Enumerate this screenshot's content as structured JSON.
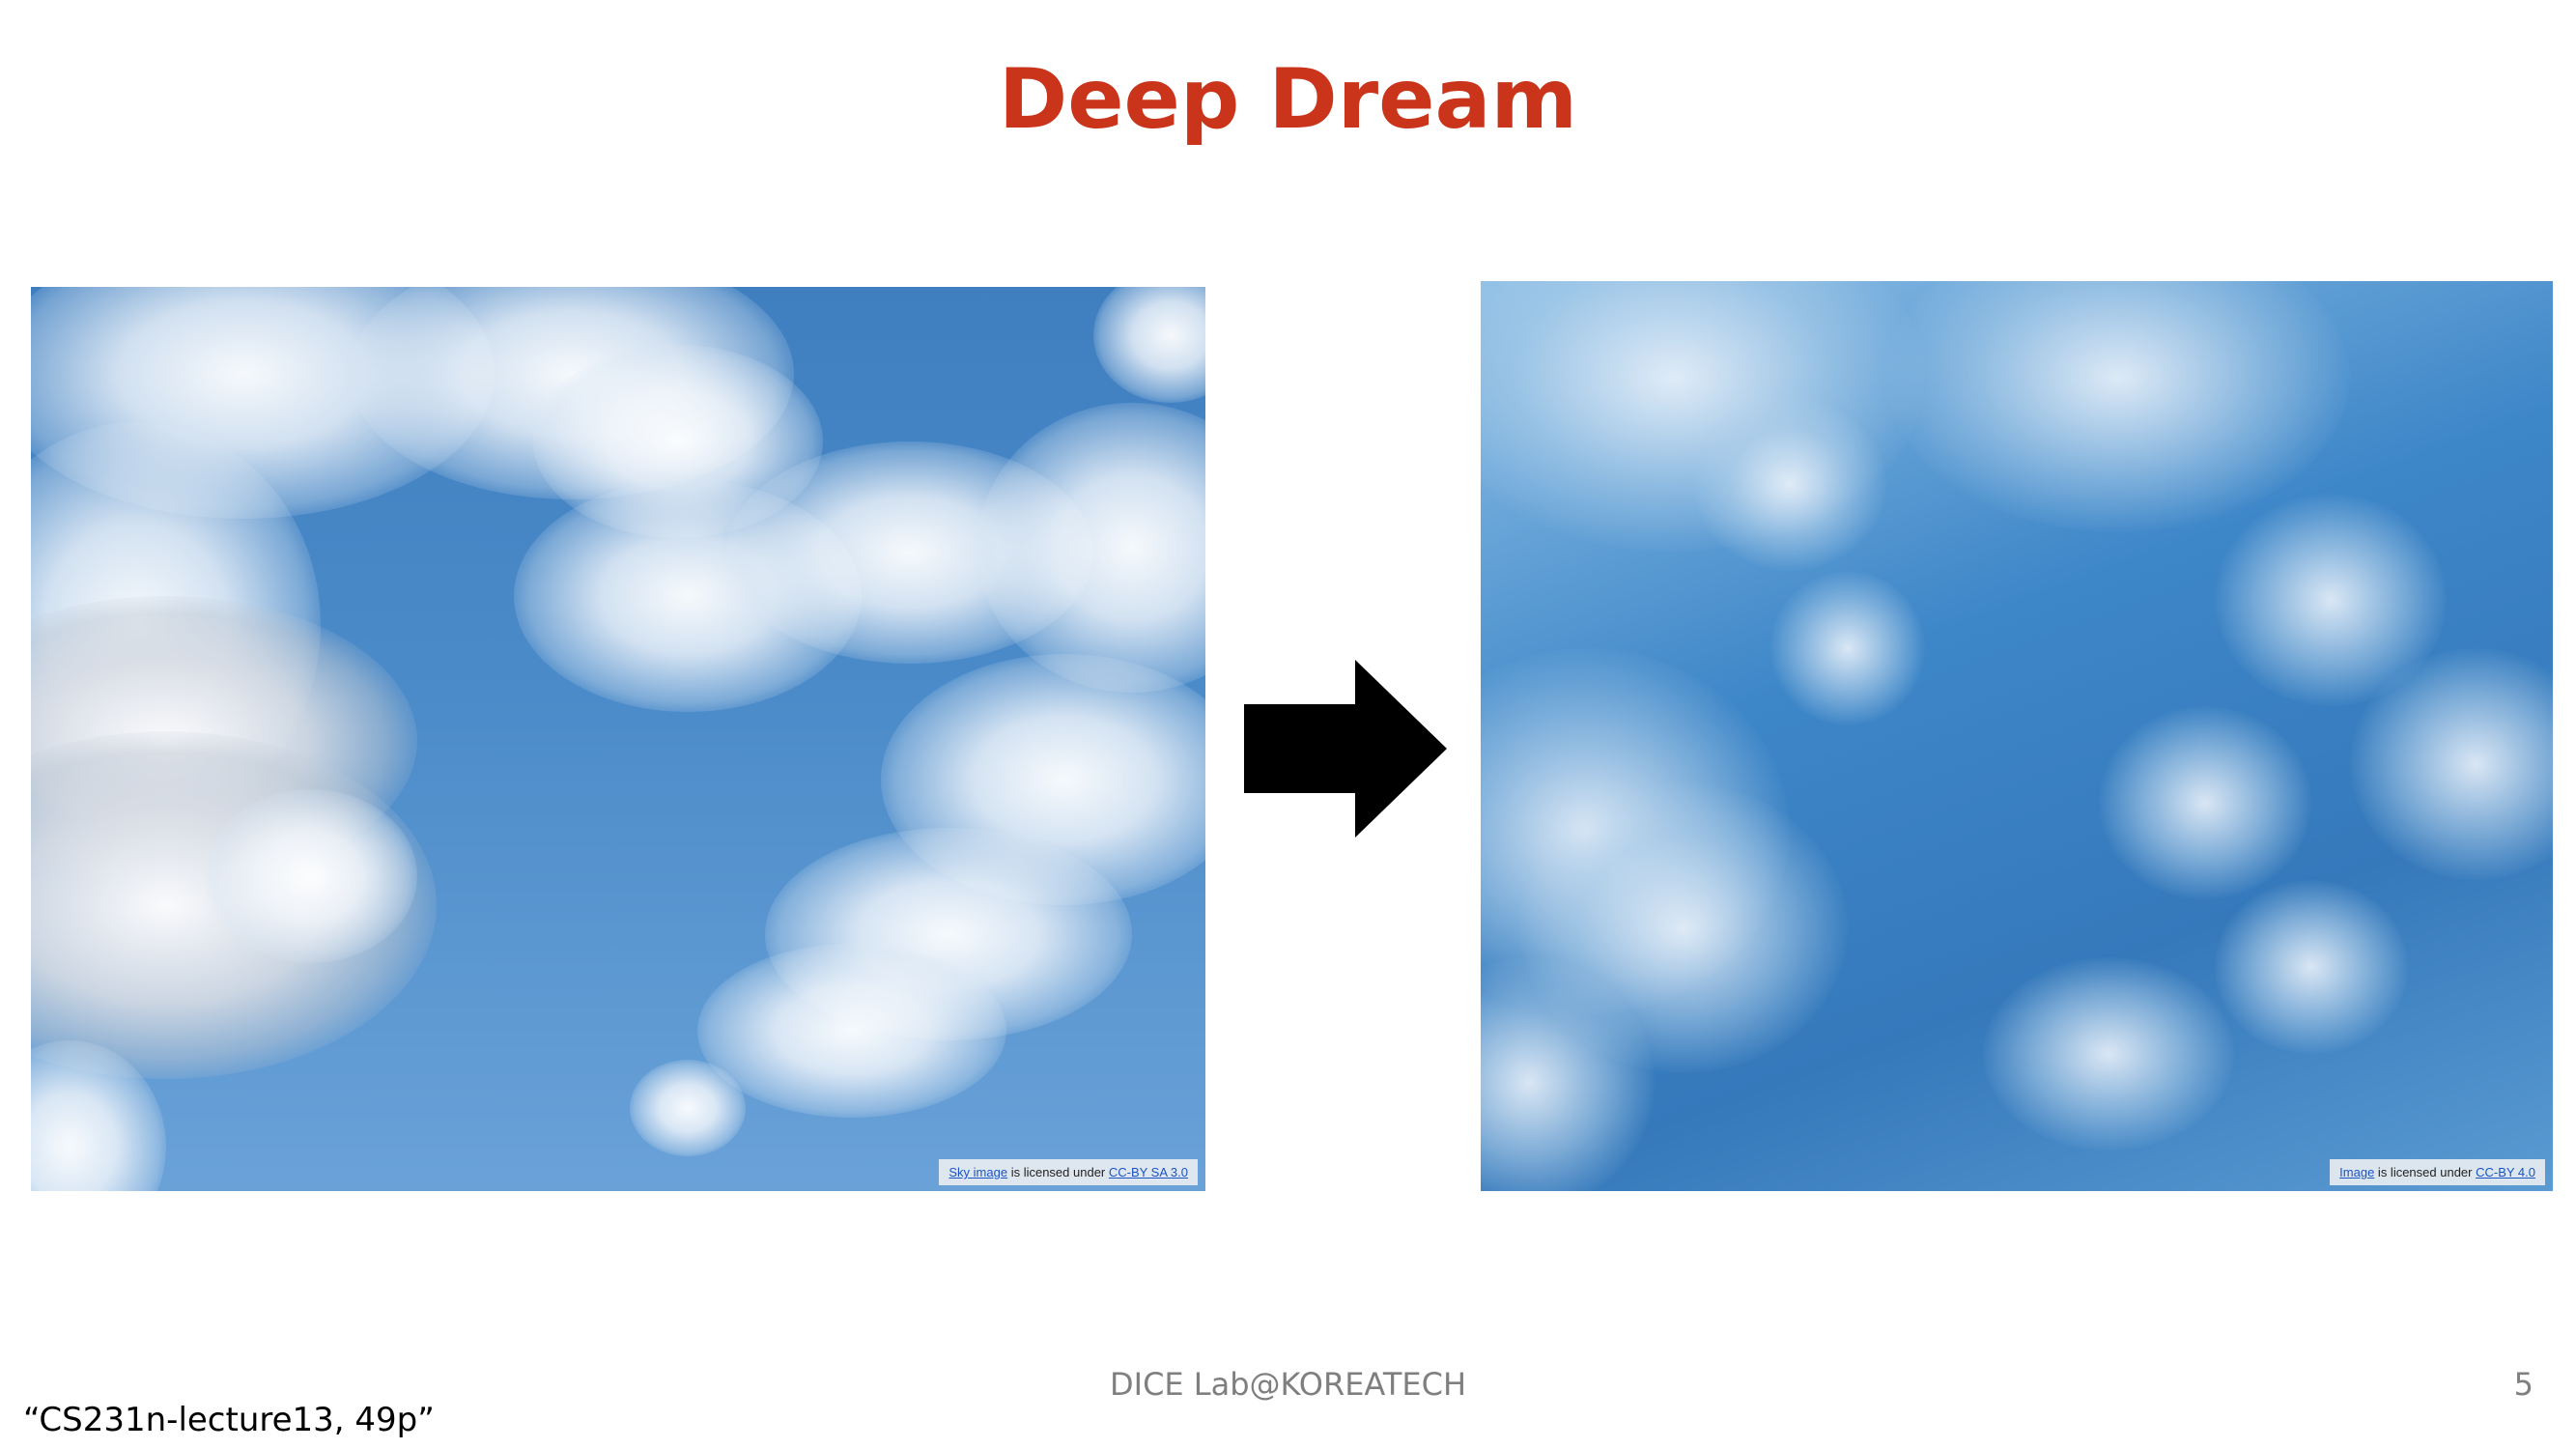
{
  "slide": {
    "title": "Deep Dream",
    "footer": "DICE Lab@KOREATECH",
    "page_number": "5",
    "source": "“CS231n-lecture13, 49p”"
  },
  "left_image": {
    "icon": "sky-photo",
    "credit": {
      "link1": "Sky image",
      "middle": " is licensed under ",
      "link2": "CC-BY SA 3.0"
    }
  },
  "right_image": {
    "icon": "deep-dream-photo",
    "credit": {
      "link1": "Image",
      "middle": " is licensed under ",
      "link2": "CC-BY 4.0"
    }
  },
  "arrow": {
    "icon": "right-arrow-icon",
    "color": "#000000"
  },
  "colors": {
    "title": "#c9341a",
    "footer": "#7f7f7f"
  }
}
